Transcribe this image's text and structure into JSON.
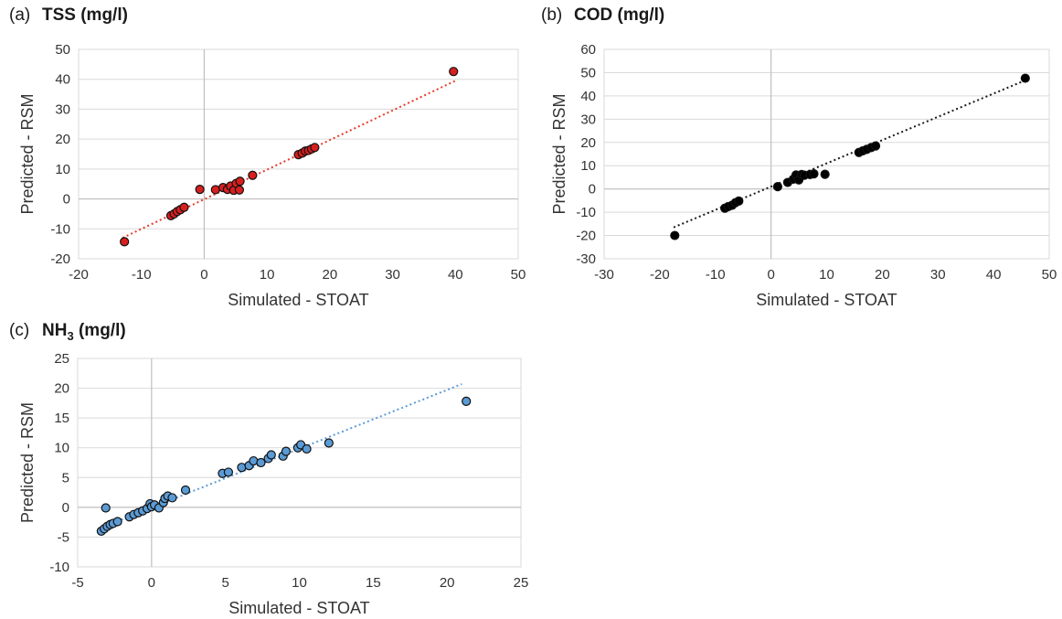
{
  "chart_data": [
    {
      "panel": "(a)",
      "title": "TSS (mg/l)",
      "type": "scatter",
      "xlabel": "Simulated - STOAT",
      "ylabel": "Predicted - RSM",
      "xlim": [
        -20,
        50
      ],
      "ylim": [
        -20,
        50
      ],
      "xticks": [
        -20,
        -10,
        0,
        10,
        20,
        30,
        40,
        50
      ],
      "yticks": [
        -20,
        -10,
        0,
        10,
        20,
        30,
        40,
        50
      ],
      "grid": "horizontal",
      "marker_color": "#d81f1f",
      "trendline": {
        "style": "dotted",
        "color": "#e83a2a",
        "from": [
          -13,
          -13
        ],
        "to": [
          40,
          39.5
        ]
      },
      "points": [
        {
          "x": -12.7,
          "y": -14.3
        },
        {
          "x": -5.3,
          "y": -5.6
        },
        {
          "x": -4.8,
          "y": -5.0
        },
        {
          "x": -4.3,
          "y": -4.2
        },
        {
          "x": -3.8,
          "y": -3.6
        },
        {
          "x": -3.2,
          "y": -2.8
        },
        {
          "x": -0.7,
          "y": 3.2
        },
        {
          "x": 1.8,
          "y": 3.1
        },
        {
          "x": 3.0,
          "y": 3.8
        },
        {
          "x": 3.7,
          "y": 3.2
        },
        {
          "x": 4.2,
          "y": 4.3
        },
        {
          "x": 4.7,
          "y": 2.9
        },
        {
          "x": 5.1,
          "y": 5.2
        },
        {
          "x": 5.6,
          "y": 3.0
        },
        {
          "x": 5.7,
          "y": 5.9
        },
        {
          "x": 7.7,
          "y": 7.9
        },
        {
          "x": 15.0,
          "y": 14.8
        },
        {
          "x": 15.6,
          "y": 15.3
        },
        {
          "x": 16.1,
          "y": 16.0
        },
        {
          "x": 16.6,
          "y": 16.2
        },
        {
          "x": 17.1,
          "y": 16.7
        },
        {
          "x": 17.6,
          "y": 17.2
        },
        {
          "x": 39.7,
          "y": 42.6
        }
      ]
    },
    {
      "panel": "(b)",
      "title": "COD (mg/l)",
      "type": "scatter",
      "xlabel": "Simulated - STOAT",
      "ylabel": "Predicted - RSM",
      "xlim": [
        -30,
        50
      ],
      "ylim": [
        -30,
        60
      ],
      "xticks": [
        -30,
        -20,
        -10,
        0,
        10,
        20,
        30,
        40,
        50
      ],
      "yticks": [
        -30,
        -20,
        -10,
        0,
        10,
        20,
        30,
        40,
        50,
        60
      ],
      "grid": "horizontal",
      "marker_color": "#000000",
      "trendline": {
        "style": "dotted",
        "color": "#1a1a1a",
        "from": [
          -17.5,
          -16.5
        ],
        "to": [
          45.5,
          46.5
        ]
      },
      "points": [
        {
          "x": -17.3,
          "y": -20.0
        },
        {
          "x": -8.3,
          "y": -8.3
        },
        {
          "x": -7.7,
          "y": -7.6
        },
        {
          "x": -7.0,
          "y": -7.0
        },
        {
          "x": -6.4,
          "y": -5.9
        },
        {
          "x": -5.8,
          "y": -5.2
        },
        {
          "x": 1.2,
          "y": 1.0
        },
        {
          "x": 3.0,
          "y": 2.8
        },
        {
          "x": 4.0,
          "y": 4.2
        },
        {
          "x": 4.5,
          "y": 6.0
        },
        {
          "x": 5.0,
          "y": 3.9
        },
        {
          "x": 5.5,
          "y": 6.2
        },
        {
          "x": 6.0,
          "y": 5.9
        },
        {
          "x": 7.0,
          "y": 6.2
        },
        {
          "x": 7.7,
          "y": 6.5
        },
        {
          "x": 9.7,
          "y": 6.3
        },
        {
          "x": 15.8,
          "y": 15.7
        },
        {
          "x": 16.5,
          "y": 16.4
        },
        {
          "x": 17.2,
          "y": 17.0
        },
        {
          "x": 18.0,
          "y": 17.8
        },
        {
          "x": 18.8,
          "y": 18.5
        },
        {
          "x": 45.7,
          "y": 47.6
        }
      ]
    },
    {
      "panel": "(c)",
      "title": "NH",
      "title_sub": "3",
      "title_rest": " (mg/l)",
      "type": "scatter",
      "xlabel": "Simulated - STOAT",
      "ylabel": "Predicted - RSM",
      "xlim": [
        -5,
        25
      ],
      "ylim": [
        -10,
        25
      ],
      "xticks": [
        -5,
        0,
        5,
        10,
        15,
        20,
        25
      ],
      "yticks": [
        -10,
        -5,
        0,
        5,
        10,
        15,
        20,
        25
      ],
      "grid": "horizontal",
      "marker_color": "#5b9bd5",
      "trendline": {
        "style": "dotted",
        "color": "#5b9bd5",
        "from": [
          -3.5,
          -3.5
        ],
        "to": [
          21,
          20.7
        ]
      },
      "points": [
        {
          "x": -3.4,
          "y": -4.0
        },
        {
          "x": -3.2,
          "y": -3.6
        },
        {
          "x": -3.0,
          "y": -3.2
        },
        {
          "x": -2.8,
          "y": -2.9
        },
        {
          "x": -2.6,
          "y": -2.7
        },
        {
          "x": -2.3,
          "y": -2.4
        },
        {
          "x": -3.1,
          "y": -0.1
        },
        {
          "x": -1.5,
          "y": -1.6
        },
        {
          "x": -1.2,
          "y": -1.2
        },
        {
          "x": -0.9,
          "y": -0.9
        },
        {
          "x": -0.6,
          "y": -0.6
        },
        {
          "x": -0.3,
          "y": -0.2
        },
        {
          "x": -0.1,
          "y": 0.6
        },
        {
          "x": 0.0,
          "y": 0.1
        },
        {
          "x": 0.2,
          "y": 0.4
        },
        {
          "x": 0.5,
          "y": -0.1
        },
        {
          "x": 0.8,
          "y": 0.8
        },
        {
          "x": 0.9,
          "y": 1.5
        },
        {
          "x": 1.1,
          "y": 1.9
        },
        {
          "x": 1.4,
          "y": 1.6
        },
        {
          "x": 2.3,
          "y": 2.9
        },
        {
          "x": 4.8,
          "y": 5.7
        },
        {
          "x": 5.2,
          "y": 5.9
        },
        {
          "x": 6.1,
          "y": 6.7
        },
        {
          "x": 6.6,
          "y": 7.0
        },
        {
          "x": 6.9,
          "y": 7.8
        },
        {
          "x": 7.4,
          "y": 7.5
        },
        {
          "x": 7.9,
          "y": 8.2
        },
        {
          "x": 8.1,
          "y": 8.8
        },
        {
          "x": 8.9,
          "y": 8.6
        },
        {
          "x": 9.1,
          "y": 9.4
        },
        {
          "x": 9.9,
          "y": 10.0
        },
        {
          "x": 10.1,
          "y": 10.5
        },
        {
          "x": 10.5,
          "y": 9.8
        },
        {
          "x": 12.0,
          "y": 10.8
        },
        {
          "x": 21.3,
          "y": 17.8
        }
      ]
    }
  ]
}
